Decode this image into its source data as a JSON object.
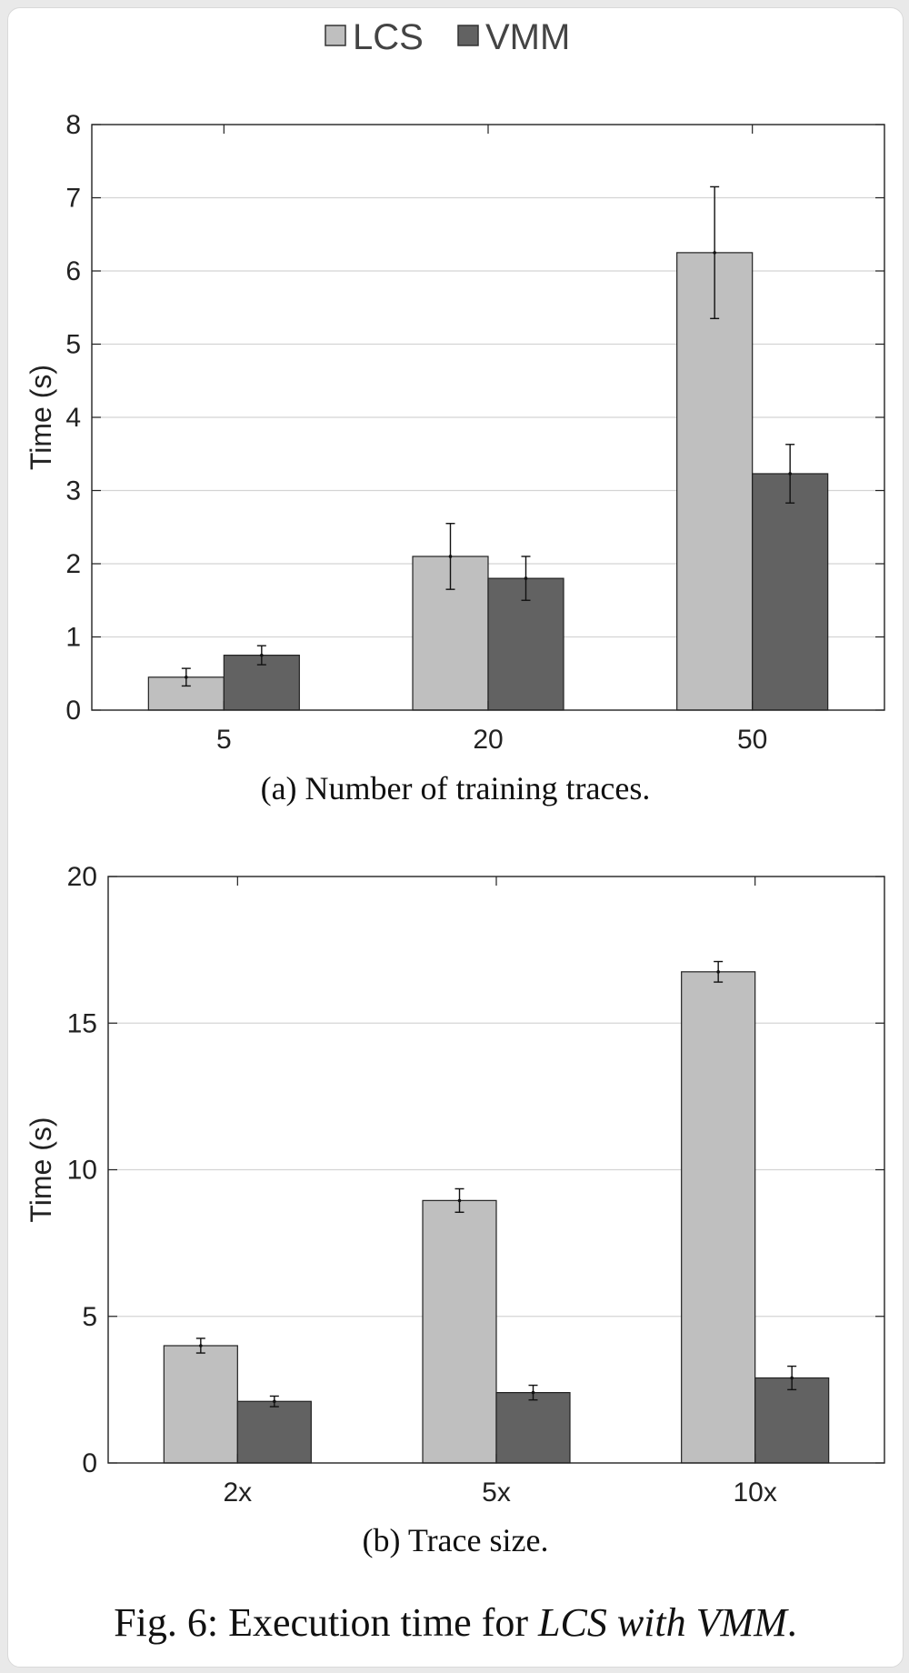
{
  "legend": {
    "items": [
      {
        "label": "LCS",
        "color": "#bfbfbf"
      },
      {
        "label": "VMM",
        "color": "#626262"
      }
    ]
  },
  "caption": {
    "prefix": "Fig. 6: Execution time for ",
    "emphasis": "LCS with VMM",
    "suffix": "."
  },
  "chart_data": [
    {
      "type": "bar",
      "title": "",
      "subcaption": "(a) Number of training traces.",
      "xlabel": "",
      "ylabel": "Time (s)",
      "ylim": [
        0,
        8
      ],
      "yticks": [
        0,
        1,
        2,
        3,
        4,
        5,
        6,
        7,
        8
      ],
      "grid": true,
      "legend_position": "top-center",
      "categories": [
        "5",
        "20",
        "50"
      ],
      "series": [
        {
          "name": "LCS",
          "color": "#bfbfbf",
          "values": [
            0.45,
            2.1,
            6.25
          ],
          "errors": [
            0.12,
            0.45,
            0.9
          ]
        },
        {
          "name": "VMM",
          "color": "#626262",
          "values": [
            0.75,
            1.8,
            3.23
          ],
          "errors": [
            0.13,
            0.3,
            0.4
          ]
        }
      ]
    },
    {
      "type": "bar",
      "title": "",
      "subcaption": "(b) Trace size.",
      "xlabel": "",
      "ylabel": "Time (s)",
      "ylim": [
        0,
        20
      ],
      "yticks": [
        0,
        5,
        10,
        15,
        20
      ],
      "grid": true,
      "categories": [
        "2x",
        "5x",
        "10x"
      ],
      "series": [
        {
          "name": "LCS",
          "color": "#bfbfbf",
          "values": [
            4.0,
            8.95,
            16.75
          ],
          "errors": [
            0.25,
            0.4,
            0.35
          ]
        },
        {
          "name": "VMM",
          "color": "#626262",
          "values": [
            2.1,
            2.4,
            2.9
          ],
          "errors": [
            0.18,
            0.25,
            0.4
          ]
        }
      ]
    }
  ]
}
